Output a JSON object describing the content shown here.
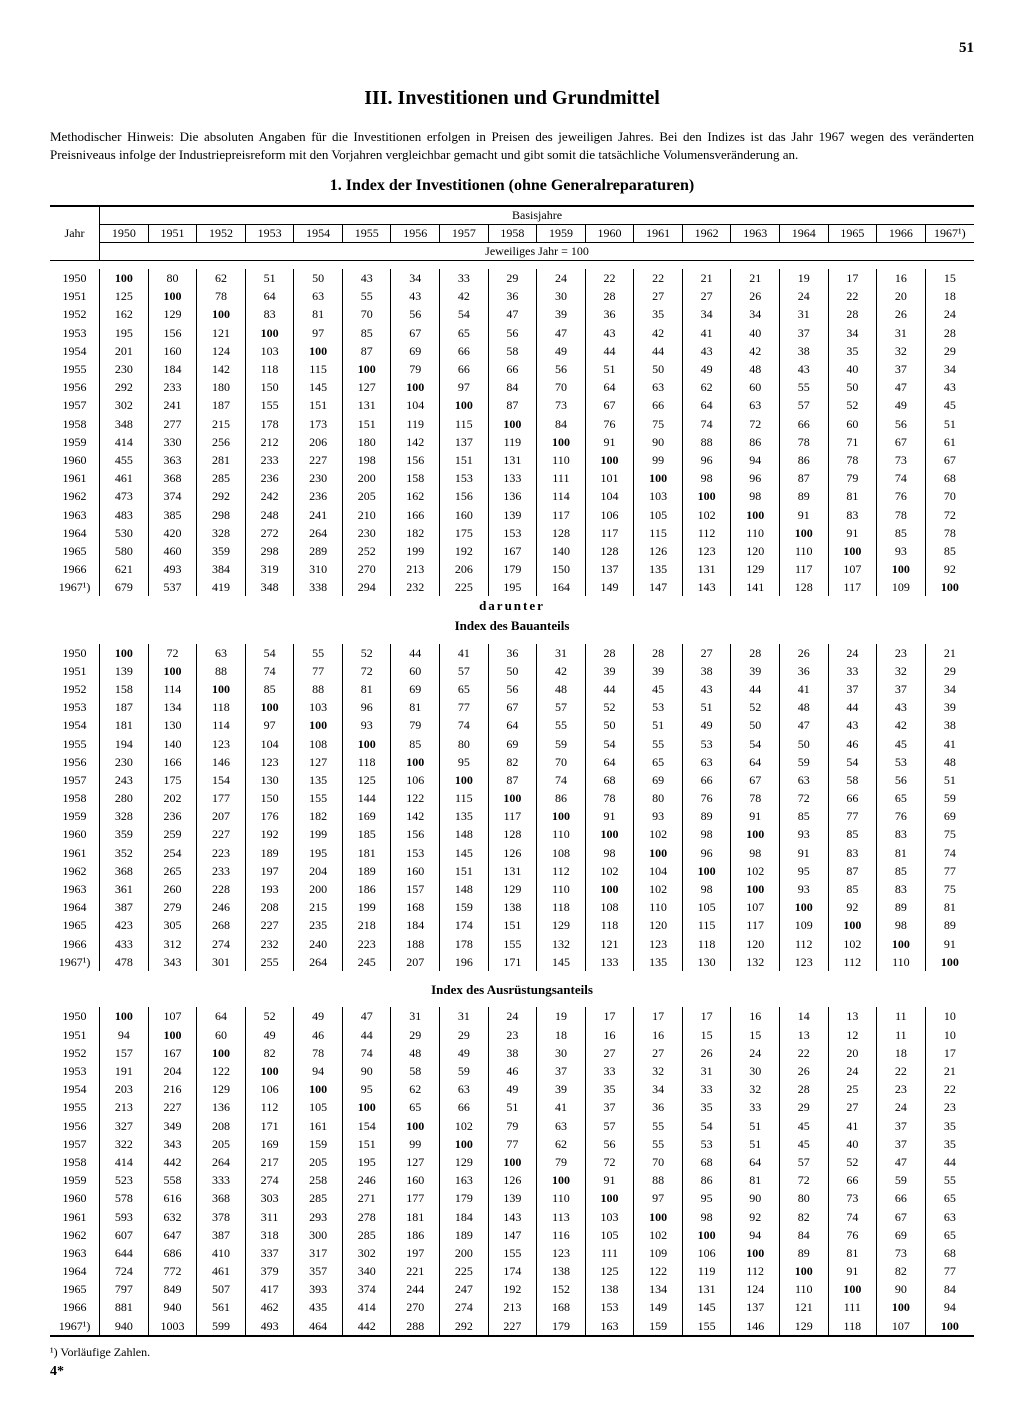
{
  "page_number": "51",
  "main_title": "III. Investitionen und Grundmittel",
  "method_note": "Methodischer Hinweis: Die absoluten Angaben für die Investitionen erfolgen in Preisen des jeweiligen Jahres. Bei den Indizes ist das Jahr 1967 wegen des veränderten Preisniveaus infolge der Industriepreisreform mit den Vorjahren vergleichbar gemacht und gibt somit die tatsächliche Volumensveränderung an.",
  "sub_title": "1. Index der Investitionen (ohne Generalreparaturen)",
  "col_year_label": "Jahr",
  "col_super_label": "Basisjahre",
  "col_sub_label": "Jeweiliges Jahr = 100",
  "darunter_label": "darunter",
  "bau_label": "Index des Bauanteils",
  "ausr_label": "Index des Ausrüstungsanteils",
  "footnote": "¹) Vorläufige Zahlen.",
  "sheet_mark": "4*",
  "columns": [
    "1950",
    "1951",
    "1952",
    "1953",
    "1954",
    "1955",
    "1956",
    "1957",
    "1958",
    "1959",
    "1960",
    "1961",
    "1962",
    "1963",
    "1964",
    "1965",
    "1966",
    "1967¹)"
  ],
  "years": [
    "1950",
    "1951",
    "1952",
    "1953",
    "1954",
    "1955",
    "1956",
    "1957",
    "1958",
    "1959",
    "1960",
    "1961",
    "1962",
    "1963",
    "1964",
    "1965",
    "1966",
    "1967¹)"
  ],
  "table1": [
    [
      100,
      80,
      62,
      51,
      50,
      43,
      34,
      33,
      29,
      24,
      22,
      22,
      21,
      21,
      19,
      17,
      16,
      15
    ],
    [
      125,
      100,
      78,
      64,
      63,
      55,
      43,
      42,
      36,
      30,
      28,
      27,
      27,
      26,
      24,
      22,
      20,
      18
    ],
    [
      162,
      129,
      100,
      83,
      81,
      70,
      56,
      54,
      47,
      39,
      36,
      35,
      34,
      34,
      31,
      28,
      26,
      24
    ],
    [
      195,
      156,
      121,
      100,
      97,
      85,
      67,
      65,
      56,
      47,
      43,
      42,
      41,
      40,
      37,
      34,
      31,
      28
    ],
    [
      201,
      160,
      124,
      103,
      100,
      87,
      69,
      66,
      58,
      49,
      44,
      44,
      43,
      42,
      38,
      35,
      32,
      29
    ],
    [
      230,
      184,
      142,
      118,
      115,
      100,
      79,
      66,
      66,
      56,
      51,
      50,
      49,
      48,
      43,
      40,
      37,
      34
    ],
    [
      292,
      233,
      180,
      150,
      145,
      127,
      100,
      97,
      84,
      70,
      64,
      63,
      62,
      60,
      55,
      50,
      47,
      43
    ],
    [
      302,
      241,
      187,
      155,
      151,
      131,
      104,
      100,
      87,
      73,
      67,
      66,
      64,
      63,
      57,
      52,
      49,
      45
    ],
    [
      348,
      277,
      215,
      178,
      173,
      151,
      119,
      115,
      100,
      84,
      76,
      75,
      74,
      72,
      66,
      60,
      56,
      51
    ],
    [
      414,
      330,
      256,
      212,
      206,
      180,
      142,
      137,
      119,
      100,
      91,
      90,
      88,
      86,
      78,
      71,
      67,
      61
    ],
    [
      455,
      363,
      281,
      233,
      227,
      198,
      156,
      151,
      131,
      110,
      100,
      99,
      96,
      94,
      86,
      78,
      73,
      67
    ],
    [
      461,
      368,
      285,
      236,
      230,
      200,
      158,
      153,
      133,
      111,
      101,
      100,
      98,
      96,
      87,
      79,
      74,
      68
    ],
    [
      473,
      374,
      292,
      242,
      236,
      205,
      162,
      156,
      136,
      114,
      104,
      103,
      100,
      98,
      89,
      81,
      76,
      70
    ],
    [
      483,
      385,
      298,
      248,
      241,
      210,
      166,
      160,
      139,
      117,
      106,
      105,
      102,
      100,
      91,
      83,
      78,
      72
    ],
    [
      530,
      420,
      328,
      272,
      264,
      230,
      182,
      175,
      153,
      128,
      117,
      115,
      112,
      110,
      100,
      91,
      85,
      78
    ],
    [
      580,
      460,
      359,
      298,
      289,
      252,
      199,
      192,
      167,
      140,
      128,
      126,
      123,
      120,
      110,
      100,
      93,
      85
    ],
    [
      621,
      493,
      384,
      319,
      310,
      270,
      213,
      206,
      179,
      150,
      137,
      135,
      131,
      129,
      117,
      107,
      100,
      92
    ],
    [
      679,
      537,
      419,
      348,
      338,
      294,
      232,
      225,
      195,
      164,
      149,
      147,
      143,
      141,
      128,
      117,
      109,
      100
    ]
  ],
  "table2": [
    [
      100,
      72,
      63,
      54,
      55,
      52,
      44,
      41,
      36,
      31,
      28,
      28,
      27,
      28,
      26,
      24,
      23,
      21
    ],
    [
      139,
      100,
      88,
      74,
      77,
      72,
      60,
      57,
      50,
      42,
      39,
      39,
      38,
      39,
      36,
      33,
      32,
      29
    ],
    [
      158,
      114,
      100,
      85,
      88,
      81,
      69,
      65,
      56,
      48,
      44,
      45,
      43,
      44,
      41,
      37,
      37,
      34
    ],
    [
      187,
      134,
      118,
      100,
      103,
      96,
      81,
      77,
      67,
      57,
      52,
      53,
      51,
      52,
      48,
      44,
      43,
      39
    ],
    [
      181,
      130,
      114,
      97,
      100,
      93,
      79,
      74,
      64,
      55,
      50,
      51,
      49,
      50,
      47,
      43,
      42,
      38
    ],
    [
      194,
      140,
      123,
      104,
      108,
      100,
      85,
      80,
      69,
      59,
      54,
      55,
      53,
      54,
      50,
      46,
      45,
      41
    ],
    [
      230,
      166,
      146,
      123,
      127,
      118,
      100,
      95,
      82,
      70,
      64,
      65,
      63,
      64,
      59,
      54,
      53,
      48
    ],
    [
      243,
      175,
      154,
      130,
      135,
      125,
      106,
      100,
      87,
      74,
      68,
      69,
      66,
      67,
      63,
      58,
      56,
      51
    ],
    [
      280,
      202,
      177,
      150,
      155,
      144,
      122,
      115,
      100,
      86,
      78,
      80,
      76,
      78,
      72,
      66,
      65,
      59
    ],
    [
      328,
      236,
      207,
      176,
      182,
      169,
      142,
      135,
      117,
      100,
      91,
      93,
      89,
      91,
      85,
      77,
      76,
      69
    ],
    [
      359,
      259,
      227,
      192,
      199,
      185,
      156,
      148,
      128,
      110,
      100,
      102,
      98,
      100,
      93,
      85,
      83,
      75
    ],
    [
      352,
      254,
      223,
      189,
      195,
      181,
      153,
      145,
      126,
      108,
      98,
      100,
      96,
      98,
      91,
      83,
      81,
      74
    ],
    [
      368,
      265,
      233,
      197,
      204,
      189,
      160,
      151,
      131,
      112,
      102,
      104,
      100,
      102,
      95,
      87,
      85,
      77
    ],
    [
      361,
      260,
      228,
      193,
      200,
      186,
      157,
      148,
      129,
      110,
      100,
      102,
      98,
      100,
      93,
      85,
      83,
      75
    ],
    [
      387,
      279,
      246,
      208,
      215,
      199,
      168,
      159,
      138,
      118,
      108,
      110,
      105,
      107,
      100,
      92,
      89,
      81
    ],
    [
      423,
      305,
      268,
      227,
      235,
      218,
      184,
      174,
      151,
      129,
      118,
      120,
      115,
      117,
      109,
      100,
      98,
      89
    ],
    [
      433,
      312,
      274,
      232,
      240,
      223,
      188,
      178,
      155,
      132,
      121,
      123,
      118,
      120,
      112,
      102,
      100,
      91
    ],
    [
      478,
      343,
      301,
      255,
      264,
      245,
      207,
      196,
      171,
      145,
      133,
      135,
      130,
      132,
      123,
      112,
      110,
      100
    ]
  ],
  "table3": [
    [
      100,
      107,
      64,
      52,
      49,
      47,
      31,
      31,
      24,
      19,
      17,
      17,
      17,
      16,
      14,
      13,
      11,
      10
    ],
    [
      94,
      100,
      60,
      49,
      46,
      44,
      29,
      29,
      23,
      18,
      16,
      16,
      15,
      15,
      13,
      12,
      11,
      10
    ],
    [
      157,
      167,
      100,
      82,
      78,
      74,
      48,
      49,
      38,
      30,
      27,
      27,
      26,
      24,
      22,
      20,
      18,
      17
    ],
    [
      191,
      204,
      122,
      100,
      94,
      90,
      58,
      59,
      46,
      37,
      33,
      32,
      31,
      30,
      26,
      24,
      22,
      21
    ],
    [
      203,
      216,
      129,
      106,
      100,
      95,
      62,
      63,
      49,
      39,
      35,
      34,
      33,
      32,
      28,
      25,
      23,
      22
    ],
    [
      213,
      227,
      136,
      112,
      105,
      100,
      65,
      66,
      51,
      41,
      37,
      36,
      35,
      33,
      29,
      27,
      24,
      23
    ],
    [
      327,
      349,
      208,
      171,
      161,
      154,
      100,
      102,
      79,
      63,
      57,
      55,
      54,
      51,
      45,
      41,
      37,
      35
    ],
    [
      322,
      343,
      205,
      169,
      159,
      151,
      99,
      100,
      77,
      62,
      56,
      55,
      53,
      51,
      45,
      40,
      37,
      35
    ],
    [
      414,
      442,
      264,
      217,
      205,
      195,
      127,
      129,
      100,
      79,
      72,
      70,
      68,
      64,
      57,
      52,
      47,
      44
    ],
    [
      523,
      558,
      333,
      274,
      258,
      246,
      160,
      163,
      126,
      100,
      91,
      88,
      86,
      81,
      72,
      66,
      59,
      55
    ],
    [
      578,
      616,
      368,
      303,
      285,
      271,
      177,
      179,
      139,
      110,
      100,
      97,
      95,
      90,
      80,
      73,
      66,
      65
    ],
    [
      593,
      632,
      378,
      311,
      293,
      278,
      181,
      184,
      143,
      113,
      103,
      100,
      98,
      92,
      82,
      74,
      67,
      63
    ],
    [
      607,
      647,
      387,
      318,
      300,
      285,
      186,
      189,
      147,
      116,
      105,
      102,
      100,
      94,
      84,
      76,
      69,
      65
    ],
    [
      644,
      686,
      410,
      337,
      317,
      302,
      197,
      200,
      155,
      123,
      111,
      109,
      106,
      100,
      89,
      81,
      73,
      68
    ],
    [
      724,
      772,
      461,
      379,
      357,
      340,
      221,
      225,
      174,
      138,
      125,
      122,
      119,
      112,
      100,
      91,
      82,
      77
    ],
    [
      797,
      849,
      507,
      417,
      393,
      374,
      244,
      247,
      192,
      152,
      138,
      134,
      131,
      124,
      110,
      100,
      90,
      84
    ],
    [
      881,
      940,
      561,
      462,
      435,
      414,
      270,
      274,
      213,
      168,
      153,
      149,
      145,
      137,
      121,
      111,
      100,
      94
    ],
    [
      940,
      1003,
      599,
      493,
      464,
      442,
      288,
      292,
      227,
      179,
      163,
      159,
      155,
      146,
      129,
      118,
      107,
      100
    ]
  ]
}
